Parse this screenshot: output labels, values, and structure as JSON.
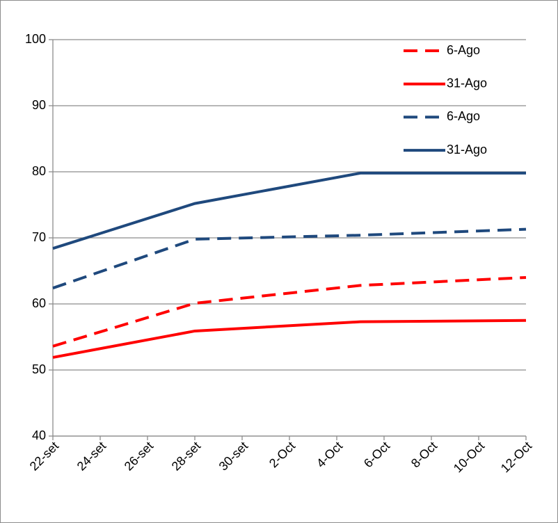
{
  "chart_data": {
    "type": "line",
    "x": [
      265,
      271,
      278,
      285
    ],
    "xlim": [
      265,
      285
    ],
    "xticks": [
      {
        "value": 265,
        "label": "22-set"
      },
      {
        "value": 267,
        "label": "24-set"
      },
      {
        "value": 269,
        "label": "26-set"
      },
      {
        "value": 271,
        "label": "28-set"
      },
      {
        "value": 273,
        "label": "30-set"
      },
      {
        "value": 275,
        "label": "2-Oct"
      },
      {
        "value": 277,
        "label": "4-Oct"
      },
      {
        "value": 279,
        "label": "6-Oct"
      },
      {
        "value": 281,
        "label": "8-Oct"
      },
      {
        "value": 283,
        "label": "10-Oct"
      },
      {
        "value": 285,
        "label": "12-Oct"
      }
    ],
    "ylim": [
      40,
      100
    ],
    "yticks": [
      40,
      50,
      60,
      70,
      80,
      90,
      100
    ],
    "grid": true,
    "legend": "top-right",
    "series": [
      {
        "name": "6-Ago",
        "color": "#ff0000",
        "line_style": "dashed",
        "values": [
          53.6,
          60.1,
          62.8,
          64.0
        ]
      },
      {
        "name": "31-Ago",
        "color": "#ff0000",
        "line_style": "solid",
        "values": [
          51.9,
          55.9,
          57.3,
          57.5
        ]
      },
      {
        "name": "6-Ago",
        "color": "#1f497d",
        "line_style": "dashed",
        "values": [
          62.4,
          69.8,
          70.4,
          71.3
        ]
      },
      {
        "name": "31-Ago",
        "color": "#1f497d",
        "line_style": "solid",
        "values": [
          68.4,
          75.2,
          79.8,
          79.8
        ]
      }
    ]
  }
}
